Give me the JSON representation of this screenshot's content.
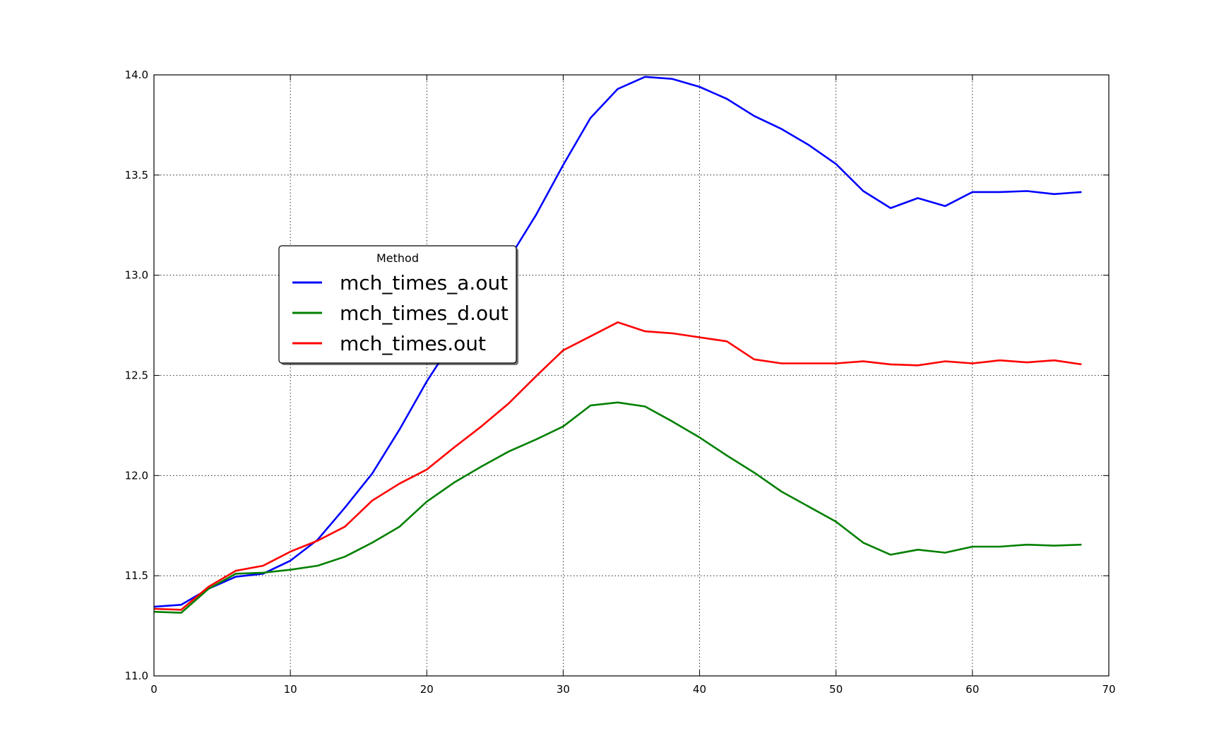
{
  "chart_data": {
    "type": "line",
    "title": "",
    "xlabel": "",
    "ylabel": "",
    "xlim": [
      0,
      70
    ],
    "ylim": [
      11.0,
      14.0
    ],
    "xticks": [
      0,
      10,
      20,
      30,
      40,
      50,
      60,
      70
    ],
    "xtick_labels": [
      "0",
      "10",
      "20",
      "30",
      "40",
      "50",
      "60",
      "70"
    ],
    "yticks": [
      11.0,
      11.5,
      12.0,
      12.5,
      13.0,
      13.5,
      14.0
    ],
    "ytick_labels": [
      "11.0",
      "11.5",
      "12.0",
      "12.5",
      "13.0",
      "13.5",
      "14.0"
    ],
    "grid": true,
    "legend": {
      "title": "Method",
      "placement": "center-left"
    },
    "x": [
      0,
      2,
      4,
      6,
      8,
      10,
      12,
      14,
      16,
      18,
      20,
      22,
      24,
      26,
      28,
      30,
      32,
      34,
      36,
      38,
      40,
      42,
      44,
      46,
      48,
      50,
      52,
      54,
      56,
      58,
      60,
      62,
      64,
      66,
      68
    ],
    "series": [
      {
        "name": "mch_times_a.out",
        "color": "#0000ff",
        "values": [
          11.345,
          11.355,
          11.435,
          11.495,
          11.51,
          11.575,
          11.68,
          11.84,
          12.01,
          12.23,
          12.47,
          12.68,
          12.88,
          13.08,
          13.3,
          13.55,
          13.785,
          13.93,
          13.99,
          13.98,
          13.94,
          13.88,
          13.795,
          13.73,
          13.65,
          13.555,
          13.42,
          13.335,
          13.385,
          13.345,
          13.415,
          13.415,
          13.42,
          13.405,
          13.415
        ]
      },
      {
        "name": "mch_times_d.out",
        "color": "#008000",
        "values": [
          11.32,
          11.315,
          11.435,
          11.51,
          11.515,
          11.53,
          11.55,
          11.595,
          11.665,
          11.745,
          11.87,
          11.965,
          12.045,
          12.12,
          12.18,
          12.245,
          12.35,
          12.365,
          12.345,
          12.27,
          12.19,
          12.1,
          12.015,
          11.92,
          11.845,
          11.77,
          11.665,
          11.605,
          11.63,
          11.615,
          11.645,
          11.645,
          11.655,
          11.65,
          11.655
        ]
      },
      {
        "name": "mch_times.out",
        "color": "#ff0000",
        "values": [
          11.335,
          11.33,
          11.445,
          11.525,
          11.55,
          11.62,
          11.675,
          11.745,
          11.875,
          11.96,
          12.03,
          12.14,
          12.245,
          12.36,
          12.495,
          12.625,
          12.695,
          12.765,
          12.72,
          12.71,
          12.69,
          12.67,
          12.58,
          12.56,
          12.56,
          12.56,
          12.57,
          12.555,
          12.55,
          12.57,
          12.56,
          12.575,
          12.565,
          12.575,
          12.555
        ]
      }
    ]
  }
}
